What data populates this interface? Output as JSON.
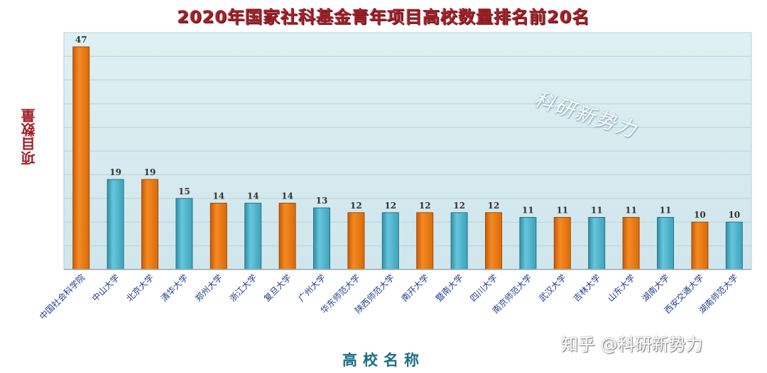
{
  "chart_data": {
    "type": "bar",
    "title": "2020年国家社科基金青年项目高校数量排名前20名",
    "xlabel": "高校名称",
    "ylabel": "项目数量",
    "ylim": [
      0,
      50
    ],
    "grid": true,
    "categories": [
      "中国社会科学院",
      "中山大学",
      "北京大学",
      "清华大学",
      "郑州大学",
      "浙江大学",
      "复旦大学",
      "广州大学",
      "华东师范大学",
      "陕西师范大学",
      "南开大学",
      "暨南大学",
      "四川大学",
      "南京师范大学",
      "武汉大学",
      "吉林大学",
      "山东大学",
      "湖南大学",
      "西安交通大学",
      "湖南师范大学"
    ],
    "values": [
      47,
      19,
      19,
      15,
      14,
      14,
      14,
      13,
      12,
      12,
      12,
      12,
      12,
      11,
      11,
      11,
      11,
      11,
      10,
      10
    ],
    "bar_colors": [
      "orange",
      "blue",
      "orange",
      "blue",
      "orange",
      "blue",
      "orange",
      "blue",
      "orange",
      "blue",
      "orange",
      "blue",
      "orange",
      "blue",
      "orange",
      "blue",
      "orange",
      "blue",
      "orange",
      "blue"
    ],
    "colors": {
      "orange": "#f07a0e",
      "blue": "#4fb6cf",
      "plot_bg": "#d7ecf0",
      "title": "#a0222a",
      "xlabel": "#1b6f84",
      "tick": "#1e3d8a"
    }
  },
  "watermark": "科研新势力",
  "footer_mark": "知乎 @科研新势力"
}
